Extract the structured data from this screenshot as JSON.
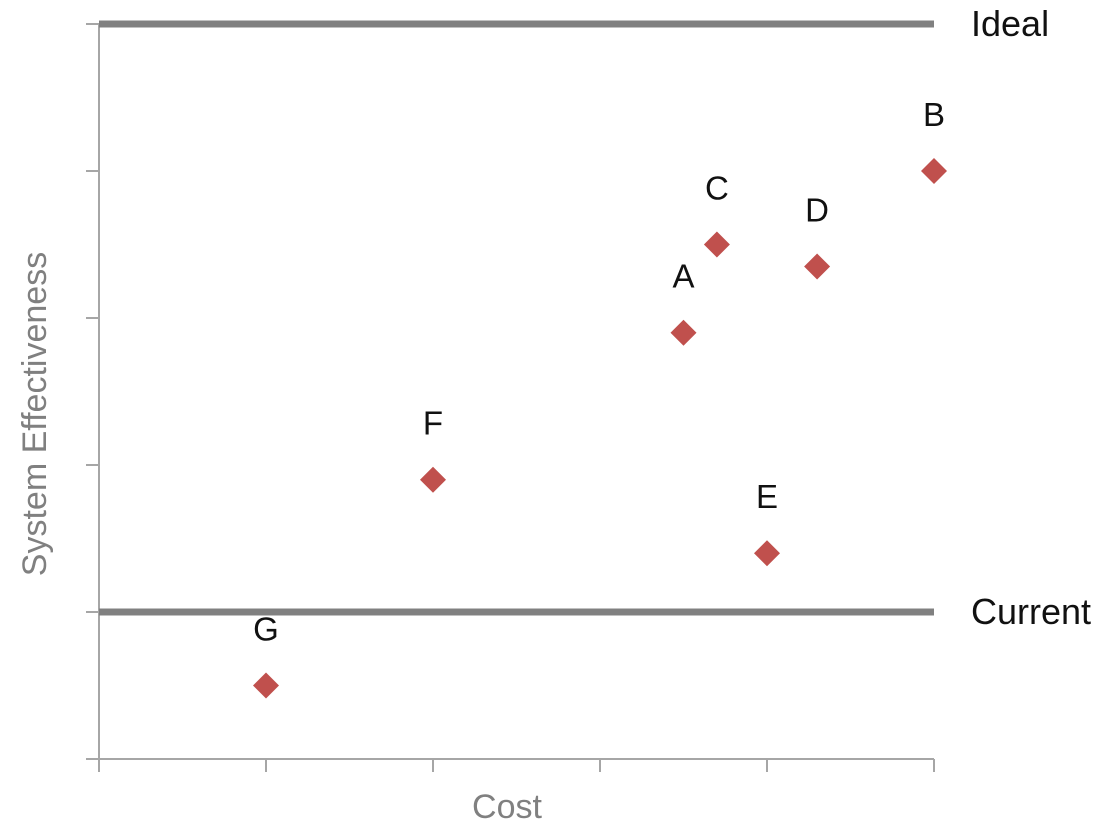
{
  "chart_data": {
    "type": "scatter",
    "xlabel": "Cost",
    "ylabel": "System Effectiveness",
    "xlim": [
      0,
      5
    ],
    "ylim": [
      0,
      5
    ],
    "x_ticks": [
      0,
      1,
      2,
      3,
      4,
      5
    ],
    "y_ticks": [
      0,
      1,
      2,
      3,
      4,
      5
    ],
    "grid": false,
    "marker": "diamond",
    "marker_color": "#c0504d",
    "points": [
      {
        "label": "A",
        "x": 3.5,
        "y": 2.9
      },
      {
        "label": "B",
        "x": 5.0,
        "y": 4.0
      },
      {
        "label": "C",
        "x": 3.7,
        "y": 3.5
      },
      {
        "label": "D",
        "x": 4.3,
        "y": 3.35
      },
      {
        "label": "E",
        "x": 4.0,
        "y": 1.4
      },
      {
        "label": "F",
        "x": 2.0,
        "y": 1.9
      },
      {
        "label": "G",
        "x": 1.0,
        "y": 0.5
      }
    ],
    "reference_lines": [
      {
        "label": "Ideal",
        "y": 5.0,
        "color": "#808080"
      },
      {
        "label": "Current",
        "y": 1.0,
        "color": "#808080"
      }
    ]
  }
}
